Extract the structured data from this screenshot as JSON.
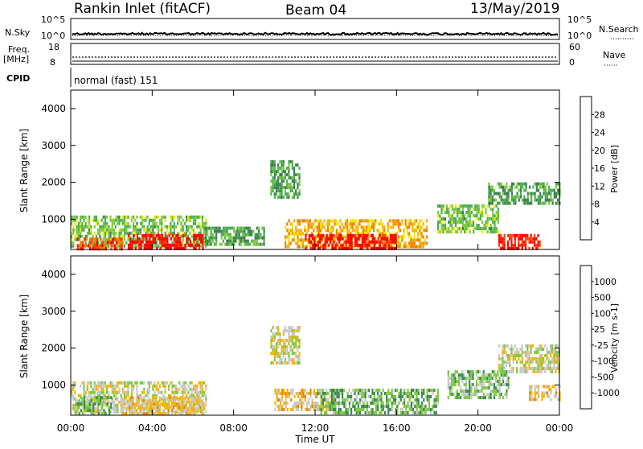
{
  "header": {
    "title": "Rankin Inlet (fitACF)",
    "beam": "Beam 04",
    "date": "13/May/2019"
  },
  "strip_noise": {
    "left_label": "N.Sky",
    "right_label": "N.Search",
    "left_ticks": [
      "10^5",
      "10^0"
    ],
    "right_ticks": [
      "10^5",
      "10^0"
    ]
  },
  "strip_freq": {
    "left_label_1": "Freq.",
    "left_label_2": "[MHz]",
    "right_label": "Nave",
    "left_ticks": [
      "18",
      "8"
    ],
    "right_ticks": [
      "60",
      "0"
    ]
  },
  "cpid": {
    "label": "CPID",
    "value": "normal (fast) 151"
  },
  "panels": {
    "power": {
      "ylabel": "Slant Range [km]",
      "yticks": [
        "4000",
        "3000",
        "2000",
        "1000"
      ],
      "colorbar_label": "Power [dB]",
      "colorbar_ticks": [
        "28",
        "24",
        "20",
        "16",
        "12",
        "8",
        "4"
      ],
      "colorbar_colors": [
        "#0000ff",
        "#2a4fa8",
        "#3c7f50",
        "#4caf50",
        "#7ec943",
        "#f2e600",
        "#f5b300",
        "#f08000",
        "#ff4000",
        "#ff0000"
      ]
    },
    "velocity": {
      "ylabel": "Slant Range [km]",
      "yticks": [
        "4000",
        "3000",
        "2000",
        "1000"
      ],
      "colorbar_label": "Velocity [m s-1]",
      "colorbar_ticks": [
        "1000",
        "500",
        "100",
        "25",
        "-25",
        "-100",
        "-500",
        "-1000"
      ],
      "colorbar_colors": [
        "#1e3cc8",
        "#2a6fa8",
        "#3c8a50",
        "#7ec943",
        "#c8c8c8",
        "#f5b300",
        "#f08000",
        "#ff4000",
        "#ff0000"
      ]
    }
  },
  "x_axis": {
    "label": "Time UT",
    "ticks": [
      "00:00",
      "04:00",
      "08:00",
      "12:00",
      "16:00",
      "20:00",
      "00:00"
    ]
  },
  "chart_data": [
    {
      "type": "heatmap",
      "name": "Power",
      "x": [
        "00:00",
        "04:00",
        "08:00",
        "12:00",
        "16:00",
        "20:00",
        "00:00"
      ],
      "ylabel": "Slant Range [km]",
      "xlabel": "Time UT",
      "ylim": [
        180,
        4500
      ],
      "colorbar": {
        "label": "Power [dB]",
        "ticks": [
          4,
          8,
          12,
          16,
          20,
          24,
          28
        ]
      },
      "regions": [
        {
          "t0": 0.0,
          "t1": 6.6,
          "r0": 300,
          "r1": 1100,
          "value": 14
        },
        {
          "t0": 2.8,
          "t1": 6.5,
          "r0": 250,
          "r1": 600,
          "value": 28
        },
        {
          "t0": 0.3,
          "t1": 2.5,
          "r0": 200,
          "r1": 500,
          "value": 24
        },
        {
          "t0": 6.5,
          "t1": 9.5,
          "r0": 350,
          "r1": 800,
          "value": 12
        },
        {
          "t0": 9.8,
          "t1": 11.2,
          "r0": 1600,
          "r1": 2600,
          "value": 12
        },
        {
          "t0": 10.5,
          "t1": 17.5,
          "r0": 300,
          "r1": 1000,
          "value": 20
        },
        {
          "t0": 11.5,
          "t1": 16.0,
          "r0": 250,
          "r1": 600,
          "value": 28
        },
        {
          "t0": 18.0,
          "t1": 21.0,
          "r0": 700,
          "r1": 1400,
          "value": 14
        },
        {
          "t0": 20.5,
          "t1": 24.0,
          "r0": 1400,
          "r1": 2000,
          "value": 12
        },
        {
          "t0": 21.0,
          "t1": 23.0,
          "r0": 250,
          "r1": 600,
          "value": 26
        }
      ]
    },
    {
      "type": "heatmap",
      "name": "Velocity",
      "x": [
        "00:00",
        "04:00",
        "08:00",
        "12:00",
        "16:00",
        "20:00",
        "00:00"
      ],
      "ylabel": "Slant Range [km]",
      "xlabel": "Time UT",
      "ylim": [
        180,
        4500
      ],
      "colorbar": {
        "label": "Velocity [m s-1]",
        "ticks": [
          1000,
          500,
          100,
          25,
          -25,
          -100,
          -500,
          -1000
        ]
      },
      "regions": [
        {
          "t0": 0.0,
          "t1": 6.6,
          "r0": 300,
          "r1": 1100,
          "value": 0
        },
        {
          "t0": 2.5,
          "t1": 6.5,
          "r0": 200,
          "r1": 700,
          "value": 150
        },
        {
          "t0": 0.2,
          "t1": 2.0,
          "r0": 200,
          "r1": 700,
          "value": -300
        },
        {
          "t0": 9.8,
          "t1": 11.2,
          "r0": 1600,
          "r1": 2600,
          "value": 0
        },
        {
          "t0": 10.0,
          "t1": 13.0,
          "r0": 300,
          "r1": 900,
          "value": 150
        },
        {
          "t0": 12.0,
          "t1": 18.0,
          "r0": 250,
          "r1": 900,
          "value": -300
        },
        {
          "t0": 18.5,
          "t1": 21.5,
          "r0": 700,
          "r1": 1400,
          "value": -200
        },
        {
          "t0": 21.0,
          "t1": 24.0,
          "r0": 1400,
          "r1": 2100,
          "value": 0
        },
        {
          "t0": 22.5,
          "t1": 24.0,
          "r0": 600,
          "r1": 1000,
          "value": 200
        }
      ]
    }
  ]
}
